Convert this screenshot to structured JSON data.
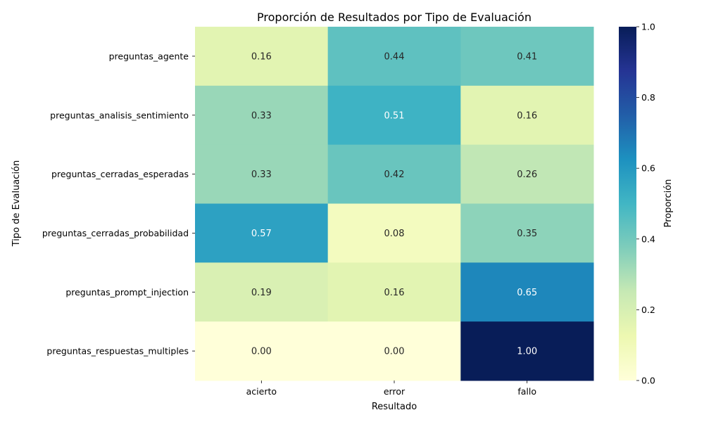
{
  "chart_data": {
    "type": "heatmap",
    "title": "Proporción de Resultados por Tipo de Evaluación",
    "xlabel": "Resultado",
    "ylabel": "Tipo de Evaluación",
    "x_categories": [
      "acierto",
      "error",
      "fallo"
    ],
    "y_categories": [
      "preguntas_agente",
      "preguntas_analisis_sentimiento",
      "preguntas_cerradas_esperadas",
      "preguntas_cerradas_probabilidad",
      "preguntas_prompt_injection",
      "preguntas_respuestas_multiples"
    ],
    "values": [
      [
        0.16,
        0.44,
        0.41
      ],
      [
        0.33,
        0.51,
        0.16
      ],
      [
        0.33,
        0.42,
        0.26
      ],
      [
        0.57,
        0.08,
        0.35
      ],
      [
        0.19,
        0.16,
        0.65
      ],
      [
        0.0,
        0.0,
        1.0
      ]
    ],
    "value_labels": [
      [
        "0.16",
        "0.44",
        "0.41"
      ],
      [
        "0.33",
        "0.51",
        "0.16"
      ],
      [
        "0.33",
        "0.42",
        "0.26"
      ],
      [
        "0.57",
        "0.08",
        "0.35"
      ],
      [
        "0.19",
        "0.16",
        "0.65"
      ],
      [
        "0.00",
        "0.00",
        "1.00"
      ]
    ],
    "colormap": "YlGnBu",
    "vmin": 0,
    "vmax": 1,
    "colorbar": {
      "label": "Proporción",
      "ticks": [
        "0.0",
        "0.2",
        "0.4",
        "0.6",
        "0.8",
        "1.0"
      ]
    }
  }
}
